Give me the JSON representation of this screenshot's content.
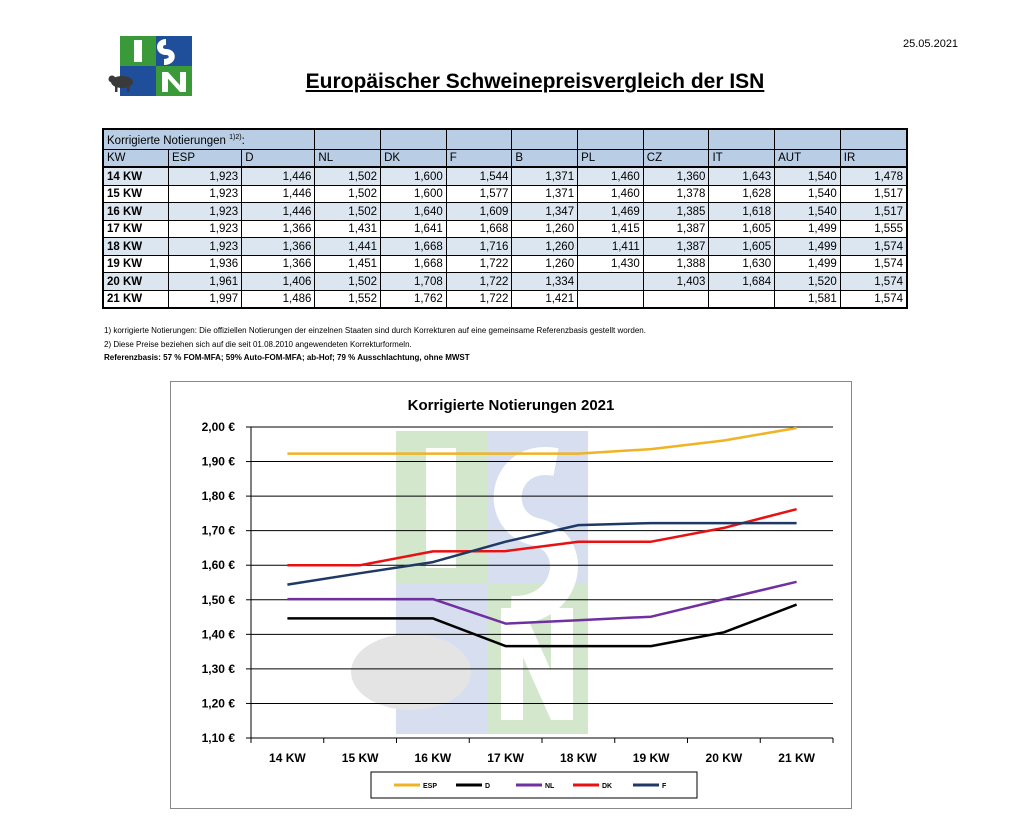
{
  "date": "25.05.2021",
  "logo": {
    "text": "ISN"
  },
  "title": "Europäischer Schweinepreisvergleich der ISN",
  "table": {
    "caption": "Korrigierte Notierungen",
    "caption_sup": "1)2)",
    "caption_colon": ":",
    "headers": [
      "KW",
      "ESP",
      "D",
      "NL",
      "DK",
      "F",
      "B",
      "PL",
      "CZ",
      "IT",
      "AUT",
      "IR"
    ],
    "rows": [
      [
        "14 KW",
        "1,923",
        "1,446",
        "1,502",
        "1,600",
        "1,544",
        "1,371",
        "1,460",
        "1,360",
        "1,643",
        "1,540",
        "1,478"
      ],
      [
        "15 KW",
        "1,923",
        "1,446",
        "1,502",
        "1,600",
        "1,577",
        "1,371",
        "1,460",
        "1,378",
        "1,628",
        "1,540",
        "1,517"
      ],
      [
        "16 KW",
        "1,923",
        "1,446",
        "1,502",
        "1,640",
        "1,609",
        "1,347",
        "1,469",
        "1,385",
        "1,618",
        "1,540",
        "1,517"
      ],
      [
        "17 KW",
        "1,923",
        "1,366",
        "1,431",
        "1,641",
        "1,668",
        "1,260",
        "1,415",
        "1,387",
        "1,605",
        "1,499",
        "1,555"
      ],
      [
        "18 KW",
        "1,923",
        "1,366",
        "1,441",
        "1,668",
        "1,716",
        "1,260",
        "1,411",
        "1,387",
        "1,605",
        "1,499",
        "1,574"
      ],
      [
        "19 KW",
        "1,936",
        "1,366",
        "1,451",
        "1,668",
        "1,722",
        "1,260",
        "1,430",
        "1,388",
        "1,630",
        "1,499",
        "1,574"
      ],
      [
        "20 KW",
        "1,961",
        "1,406",
        "1,502",
        "1,708",
        "1,722",
        "1,334",
        "",
        "1,403",
        "1,684",
        "1,520",
        "1,574"
      ],
      [
        "21 KW",
        "1,997",
        "1,486",
        "1,552",
        "1,762",
        "1,722",
        "1,421",
        "",
        "",
        "",
        "1,581",
        "1,574"
      ]
    ]
  },
  "notes": {
    "note1": "1) korrigierte Notierungen: Die offiziellen Notierungen der einzelnen Staaten sind durch Korrekturen auf eine gemeinsame Referenzbasis gestellt worden.",
    "note2": "2) Diese Preise beziehen sich auf die seit 01.08.2010 angewendeten Korrekturformeln.",
    "note3": "Referenzbasis: 57 % FOM-MFA; 59% Auto-FOM-MFA; ab-Hof; 79 % Ausschlachtung, ohne MWST"
  },
  "chart_data": {
    "type": "line",
    "title": "Korrigierte Notierungen 2021",
    "categories": [
      "14 KW",
      "15 KW",
      "16 KW",
      "17 KW",
      "18 KW",
      "19 KW",
      "20 KW",
      "21 KW"
    ],
    "y_ticks": [
      "1,10 €",
      "1,20 €",
      "1,30 €",
      "1,40 €",
      "1,50 €",
      "1,60 €",
      "1,70 €",
      "1,80 €",
      "1,90 €",
      "2,00 €"
    ],
    "ylim": [
      1.1,
      2.0
    ],
    "grid": true,
    "legend_position": "bottom",
    "series": [
      {
        "name": "ESP",
        "color": "#f0b323",
        "values": [
          1.923,
          1.923,
          1.923,
          1.923,
          1.923,
          1.936,
          1.961,
          1.997
        ]
      },
      {
        "name": "D",
        "color": "#000000",
        "values": [
          1.446,
          1.446,
          1.446,
          1.366,
          1.366,
          1.366,
          1.406,
          1.486
        ]
      },
      {
        "name": "NL",
        "color": "#7030a0",
        "values": [
          1.502,
          1.502,
          1.502,
          1.431,
          1.441,
          1.451,
          1.502,
          1.552
        ]
      },
      {
        "name": "DK",
        "color": "#e81010",
        "values": [
          1.6,
          1.6,
          1.64,
          1.641,
          1.668,
          1.668,
          1.708,
          1.762
        ]
      },
      {
        "name": "F",
        "color": "#1f3864",
        "values": [
          1.544,
          1.577,
          1.609,
          1.668,
          1.716,
          1.722,
          1.722,
          1.722
        ]
      }
    ]
  }
}
